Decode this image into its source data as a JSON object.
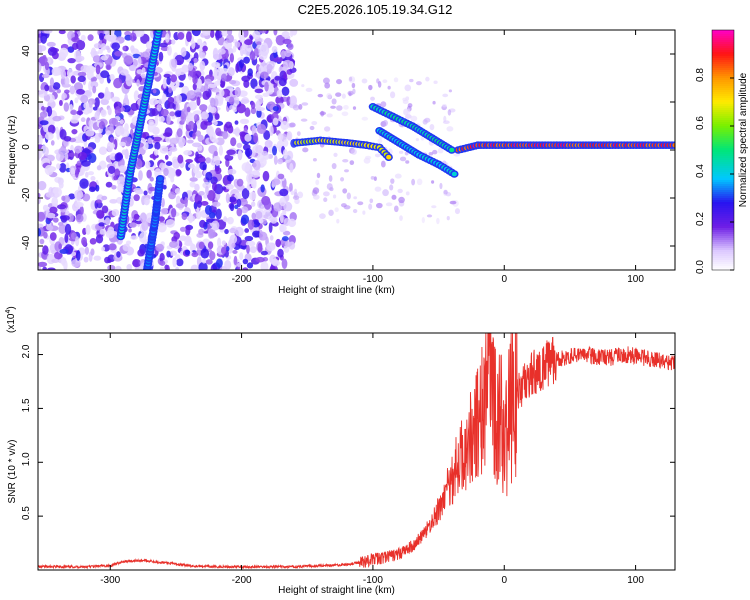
{
  "title": "C2E5.2026.105.19.34.G12",
  "chart_data": [
    {
      "type": "heatmap",
      "xlabel": "Height of straight line (km)",
      "ylabel": "Frequency (Hz)",
      "xlim": [
        -355,
        130
      ],
      "ylim": [
        -50,
        50
      ],
      "xticks": [
        -300,
        -200,
        -100,
        0,
        100
      ],
      "yticks": [
        -40,
        -20,
        0,
        20,
        40
      ],
      "colorbar": {
        "label": "Normalized spectral amplitude",
        "range": [
          0,
          1
        ],
        "ticks": [
          "0.0",
          "0.2",
          "0.4",
          "0.6",
          "0.8"
        ],
        "tick_values": [
          0,
          0.2,
          0.4,
          0.6,
          0.8
        ]
      },
      "features": [
        {
          "name": "diagonal_track_1",
          "points": [
            [
              -292,
              -36
            ],
            [
              -285,
              -10
            ],
            [
              -270,
              30
            ],
            [
              -263,
              50
            ]
          ],
          "amplitude": 0.45
        },
        {
          "name": "diagonal_track_2",
          "points": [
            [
              -272,
              -50
            ],
            [
              -266,
              -30
            ],
            [
              -262,
              -12
            ]
          ],
          "amplitude": 0.35
        },
        {
          "name": "carrier_segment_1",
          "points": [
            [
              -158,
              3
            ],
            [
              -140,
              4
            ],
            [
              -120,
              3
            ],
            [
              -105,
              2
            ],
            [
              -95,
              1
            ],
            [
              -88,
              -3
            ]
          ],
          "amplitude": 0.75
        },
        {
          "name": "carrier_segment_2",
          "points": [
            [
              -35,
              0
            ],
            [
              -20,
              2
            ],
            [
              0,
              2
            ],
            [
              40,
              2
            ],
            [
              80,
              2
            ],
            [
              130,
              2
            ]
          ],
          "amplitude": 0.95
        },
        {
          "name": "branch_1",
          "points": [
            [
              -100,
              18
            ],
            [
              -85,
              14
            ],
            [
              -70,
              10
            ],
            [
              -55,
              5
            ],
            [
              -40,
              0
            ]
          ],
          "amplitude": 0.5
        },
        {
          "name": "branch_2",
          "points": [
            [
              -95,
              8
            ],
            [
              -80,
              3
            ],
            [
              -65,
              -2
            ],
            [
              -50,
              -6
            ],
            [
              -38,
              -10
            ]
          ],
          "amplitude": 0.45
        }
      ]
    },
    {
      "type": "line",
      "xlabel": "Height of straight line (km)",
      "ylabel": "SNR (10 * v/v)",
      "y_multiplier_label": "(x10",
      "y_multiplier_exp": "4",
      "y_multiplier_close": ")",
      "xlim": [
        -355,
        130
      ],
      "ylim": [
        0,
        2.2
      ],
      "xticks": [
        -300,
        -200,
        -100,
        0,
        100
      ],
      "yticks": [
        0.5,
        1.0,
        1.5,
        2.0
      ],
      "ytick_labels": [
        "0.5",
        "1.0",
        "1.5",
        "2.0"
      ],
      "series": [
        {
          "color": "#e8302a",
          "x": [
            -355,
            -320,
            -300,
            -290,
            -275,
            -260,
            -240,
            -220,
            -200,
            -180,
            -160,
            -140,
            -120,
            -110,
            -100,
            -90,
            -80,
            -70,
            -60,
            -50,
            -45,
            -40,
            -35,
            -30,
            -25,
            -20,
            -15,
            -10,
            -5,
            0,
            5,
            10,
            20,
            30,
            40,
            50,
            60,
            70,
            80,
            90,
            100,
            110,
            120,
            130
          ],
          "y": [
            0.03,
            0.03,
            0.04,
            0.08,
            0.09,
            0.07,
            0.04,
            0.03,
            0.03,
            0.03,
            0.03,
            0.04,
            0.05,
            0.07,
            0.1,
            0.12,
            0.15,
            0.22,
            0.35,
            0.55,
            0.7,
            0.85,
            1.0,
            1.1,
            1.25,
            1.35,
            1.55,
            1.6,
            1.4,
            1.3,
            1.45,
            1.65,
            1.8,
            1.9,
            1.95,
            1.98,
            2.0,
            1.98,
            1.97,
            2.0,
            1.99,
            1.96,
            1.94,
            1.92
          ]
        }
      ]
    }
  ]
}
